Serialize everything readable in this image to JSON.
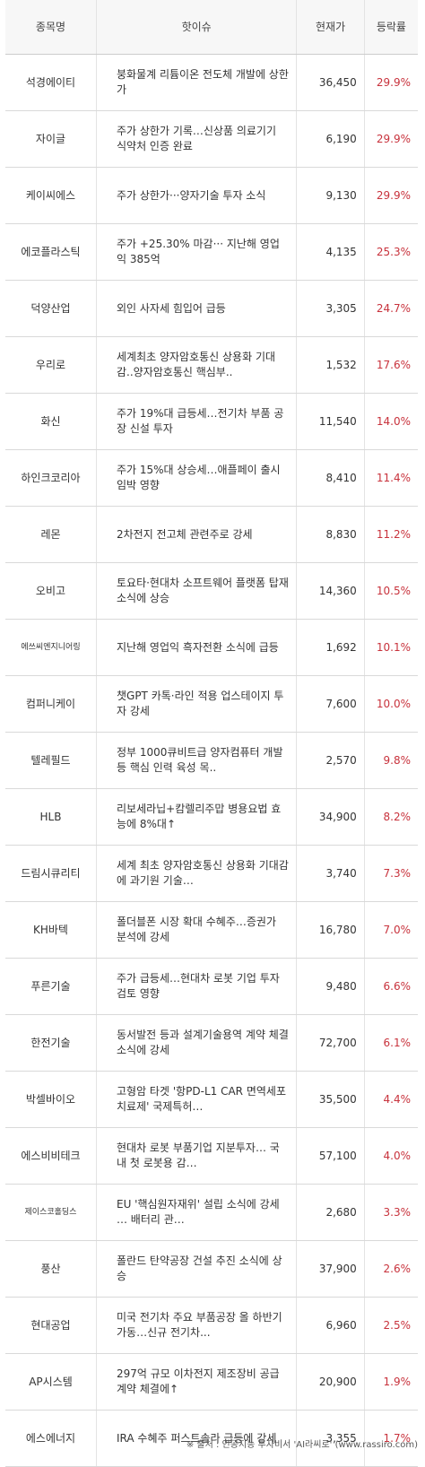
{
  "headers": {
    "name": "종목명",
    "issue": "핫이슈",
    "price": "현재가",
    "rate": "등락률"
  },
  "rows": [
    {
      "name": "석경에이티",
      "issue": "붕화물계 리튬이온 전도체 개발에 상한가",
      "price": "36,450",
      "rate": "29.9%"
    },
    {
      "name": "자이글",
      "issue": "주가 상한가 기록…신상품 의료기기 식약처 인증 완료",
      "price": "6,190",
      "rate": "29.9%"
    },
    {
      "name": "케이씨에스",
      "issue": "주가 상한가···양자기술 투자 소식",
      "price": "9,130",
      "rate": "29.9%"
    },
    {
      "name": "에코플라스틱",
      "issue": "주가 +25.30% 마감··· 지난해 영업익 385억",
      "price": "4,135",
      "rate": "25.3%"
    },
    {
      "name": "덕양산업",
      "issue": "외인 사자세 힘입어 급등",
      "price": "3,305",
      "rate": "24.7%"
    },
    {
      "name": "우리로",
      "issue": "세계최초 양자암호통신 상용화 기대감..양자암호통신 핵심부..",
      "price": "1,532",
      "rate": "17.6%"
    },
    {
      "name": "화신",
      "issue": "주가 19%대 급등세…전기차 부품 공장 신설 투자",
      "price": "11,540",
      "rate": "14.0%"
    },
    {
      "name": "하인크코리아",
      "issue": "주가 15%대 상승세…애플페이 출시 임박 영향",
      "price": "8,410",
      "rate": "11.4%"
    },
    {
      "name": "레몬",
      "issue": "2차전지 전고체 관련주로 강세",
      "price": "8,830",
      "rate": "11.2%"
    },
    {
      "name": "오비고",
      "issue": "토요타·현대차 소프트웨어 플랫폼 탑재 소식에 상승",
      "price": "14,360",
      "rate": "10.5%"
    },
    {
      "name": "에쓰씨엔지니어링",
      "issue": "지난해 영업익 흑자전환 소식에 급등",
      "price": "1,692",
      "rate": "10.1%"
    },
    {
      "name": "컴퍼니케이",
      "issue": "챗GPT 카톡·라인 적용 업스테이지 투자 강세",
      "price": "7,600",
      "rate": "10.0%"
    },
    {
      "name": "텔레필드",
      "issue": "정부 1000큐비트급 양자컴퓨터 개발 등 핵심 인력 육성 목..",
      "price": "2,570",
      "rate": "9.8%"
    },
    {
      "name": "HLB",
      "issue": "리보세라닙+캄렐리주맙 병용요법 효능에 8%대↑",
      "price": "34,900",
      "rate": "8.2%"
    },
    {
      "name": "드림시큐리티",
      "issue": "세계 최초 양자암호통신 상용화 기대감에 과기원 기술…",
      "price": "3,740",
      "rate": "7.3%"
    },
    {
      "name": "KH바텍",
      "issue": "폴더블폰 시장 확대 수혜주…증권가 분석에 강세",
      "price": "16,780",
      "rate": "7.0%"
    },
    {
      "name": "푸른기술",
      "issue": "주가 급등세…현대차 로봇 기업 투자 검토 영향",
      "price": "9,480",
      "rate": "6.6%"
    },
    {
      "name": "한전기술",
      "issue": "동서발전 등과 설계기술용역 계약 체결 소식에 강세",
      "price": "72,700",
      "rate": "6.1%"
    },
    {
      "name": "박셀바이오",
      "issue": "고형암 타겟 '항PD-L1 CAR 면역세포치료제' 국제특허…",
      "price": "35,500",
      "rate": "4.4%"
    },
    {
      "name": "에스비비테크",
      "issue": "현대차 로봇 부품기업 지분투자… 국내 첫 로봇용 감…",
      "price": "57,100",
      "rate": "4.0%"
    },
    {
      "name": "제이스코홀딩스",
      "issue": "EU '핵심원자재위' 설립 소식에 강세 … 배터리 관…",
      "price": "2,680",
      "rate": "3.3%"
    },
    {
      "name": "풍산",
      "issue": "폴란드 탄약공장 건설 추진 소식에 상승",
      "price": "37,900",
      "rate": "2.6%"
    },
    {
      "name": "현대공업",
      "issue": "미국 전기차 주요 부품공장 올 하반기 가동…신규 전기차...",
      "price": "6,960",
      "rate": "2.5%"
    },
    {
      "name": "AP시스템",
      "issue": "297억 규모 이차전지 제조장비 공급계약 체결에↑",
      "price": "20,900",
      "rate": "1.9%"
    },
    {
      "name": "에스에너지",
      "issue": "IRA 수혜주 퍼스트솔라 급등에 강세",
      "price": "3,355",
      "rate": "1.7%"
    }
  ],
  "source": "※ 출처 : 인공지능 투자비서 'AI라씨로' (www.rassiro.com)",
  "colors": {
    "rate": "#c8323c",
    "header_bg": "#f7f7f7",
    "border": "#d9d9d9"
  }
}
